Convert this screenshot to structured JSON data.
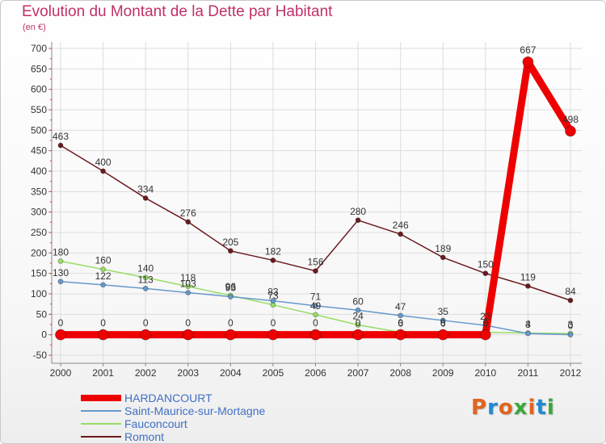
{
  "title": "Evolution du Montant de la Dette par Habitant",
  "subtitle": "(en €)",
  "logo": {
    "text": "Proxiti",
    "colors": [
      "#e0641e",
      "#1e8ad0",
      "#e0641e",
      "#3aa83a",
      "#e0641e",
      "#1e8ad0",
      "#3aa83a"
    ]
  },
  "chart_data": {
    "type": "line",
    "x": [
      2000,
      2001,
      2002,
      2003,
      2004,
      2005,
      2006,
      2007,
      2008,
      2009,
      2010,
      2011,
      2012
    ],
    "ylim": [
      -50,
      700
    ],
    "yticks": [
      -50,
      0,
      50,
      100,
      150,
      200,
      250,
      300,
      350,
      400,
      450,
      500,
      550,
      600,
      650,
      700
    ],
    "grid": true,
    "legend_position": "bottom-left",
    "series": [
      {
        "name": "Romont",
        "color": "#6b1a1f",
        "width": 1.5,
        "marker": 6,
        "values": [
          463,
          400,
          334,
          276,
          205,
          182,
          156,
          280,
          246,
          189,
          150,
          119,
          84
        ],
        "labels": [
          "463",
          "400",
          "334",
          "276",
          "205",
          "182",
          "156",
          "280",
          "246",
          "189",
          "150",
          "119",
          "84"
        ]
      },
      {
        "name": "Fauconcourt",
        "color": "#99dd66",
        "width": 1.5,
        "marker": 6,
        "values": [
          180,
          160,
          140,
          118,
          96,
          73,
          49,
          24,
          6,
          6,
          6,
          4,
          3
        ],
        "labels": [
          "180",
          "160",
          "140",
          "118",
          "96",
          "73",
          "49",
          "24",
          "6",
          "6",
          "6",
          "4",
          "3"
        ]
      },
      {
        "name": "Saint-Maurice-sur-Mortagne",
        "color": "#6699cc",
        "width": 1.5,
        "marker": 6,
        "values": [
          130,
          122,
          113,
          103,
          93,
          83,
          71,
          60,
          47,
          35,
          23,
          3,
          0
        ],
        "labels": [
          "130",
          "122",
          "113",
          "103",
          "93",
          "83",
          "71",
          "60",
          "47",
          "35",
          "23",
          "3",
          "0"
        ]
      },
      {
        "name": "HARDANCOURT",
        "color": "#ee0000",
        "width": 9,
        "marker": 13,
        "values": [
          0,
          0,
          0,
          0,
          0,
          0,
          0,
          0,
          0,
          0,
          0,
          667,
          498
        ],
        "labels": [
          "0",
          "0",
          "0",
          "0",
          "0",
          "0",
          "0",
          "0",
          "0",
          "0",
          "0",
          "667",
          "498"
        ]
      }
    ]
  },
  "legend": [
    {
      "name": "HARDANCOURT",
      "color": "#ee0000",
      "thickness": 8
    },
    {
      "name": "Saint-Maurice-sur-Mortagne",
      "color": "#6699cc",
      "thickness": 2
    },
    {
      "name": "Fauconcourt",
      "color": "#99dd66",
      "thickness": 2
    },
    {
      "name": "Romont",
      "color": "#6b1a1f",
      "thickness": 2
    }
  ]
}
